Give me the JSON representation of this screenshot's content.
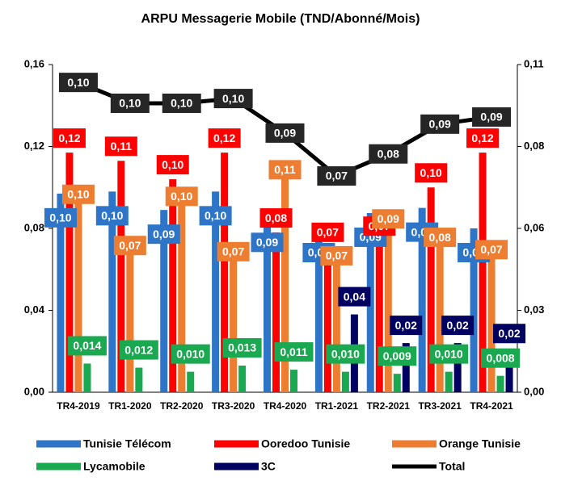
{
  "chart_data": {
    "type": "bar",
    "title": "ARPU Messagerie Mobile (TND/Abonné/Mois)",
    "categories": [
      "TR4-2019",
      "TR1-2020",
      "TR2-2020",
      "TR3-2020",
      "TR4-2020",
      "TR1-2021",
      "TR2-2021",
      "TR3-2021",
      "TR4-2021"
    ],
    "series": [
      {
        "name": "Tunisie Télécom",
        "color": "#2e75c8",
        "values": [
          0.097,
          0.098,
          0.089,
          0.098,
          0.085,
          0.08,
          0.0875,
          0.09,
          0.08
        ],
        "value_labels": [
          "0,10",
          "0,10",
          "0,09",
          "0,10",
          "0,09",
          "0,08",
          "0,09",
          "0,09",
          "0,08"
        ]
      },
      {
        "name": "Ooredoo Tunisie",
        "color": "#ff0000",
        "values": [
          0.117,
          0.113,
          0.104,
          0.117,
          0.078,
          0.071,
          0.074,
          0.1,
          0.117
        ],
        "value_labels": [
          "0,12",
          "0,11",
          "0,10",
          "0,12",
          "0,08",
          "0,07",
          "0,07",
          "0,10",
          "0,12"
        ]
      },
      {
        "name": "Orange Tunisie",
        "color": "#ed7d31",
        "values": [
          0.099,
          0.074,
          0.098,
          0.071,
          0.111,
          0.069,
          0.087,
          0.078,
          0.072
        ],
        "value_labels": [
          "0,10",
          "0,07",
          "0,10",
          "0,07",
          "0,11",
          "0,07",
          "0,09",
          "0,08",
          "0,07"
        ]
      },
      {
        "name": "Lycamobile",
        "color": "#1aa850",
        "values": [
          0.014,
          0.012,
          0.01,
          0.013,
          0.011,
          0.01,
          0.009,
          0.01,
          0.008
        ],
        "value_labels": [
          "0,014",
          "0,012",
          "0,010",
          "0,013",
          "0,011",
          "0,010",
          "0,009",
          "0,010",
          "0,008"
        ]
      },
      {
        "name": "3C",
        "color": "#000060",
        "values": [
          null,
          null,
          null,
          null,
          null,
          0.038,
          0.024,
          0.024,
          0.02
        ],
        "value_labels": [
          null,
          null,
          null,
          null,
          null,
          "0,04",
          "0,02",
          "0,02",
          "0,02"
        ]
      },
      {
        "name": "Total",
        "color": "#000000",
        "type": "line",
        "axis": "y2",
        "values": [
          0.104,
          0.097,
          0.097,
          0.0986,
          0.087,
          0.0726,
          0.08,
          0.09,
          0.0924
        ],
        "value_labels": [
          "0,10",
          "0,10",
          "0,10",
          "0,10",
          "0,09",
          "0,07",
          "0,08",
          "0,09",
          "0,09"
        ]
      }
    ],
    "ylim": [
      0,
      0.16
    ],
    "yticks": [
      {
        "value": 0,
        "label": "0,00"
      },
      {
        "value": 0.04,
        "label": "0,04"
      },
      {
        "value": 0.08,
        "label": "0,08"
      },
      {
        "value": 0.12,
        "label": "0,12"
      },
      {
        "value": 0.16,
        "label": "0,16"
      }
    ],
    "y2lim": [
      0,
      0.11
    ],
    "y2ticks": [
      {
        "value": 0,
        "label": "0,00"
      },
      {
        "value": 0.0275,
        "label": "0,03"
      },
      {
        "value": 0.055,
        "label": "0,06"
      },
      {
        "value": 0.0825,
        "label": "0,08"
      },
      {
        "value": 0.11,
        "label": "0,11"
      }
    ],
    "grid": false,
    "legend": "bottom"
  }
}
